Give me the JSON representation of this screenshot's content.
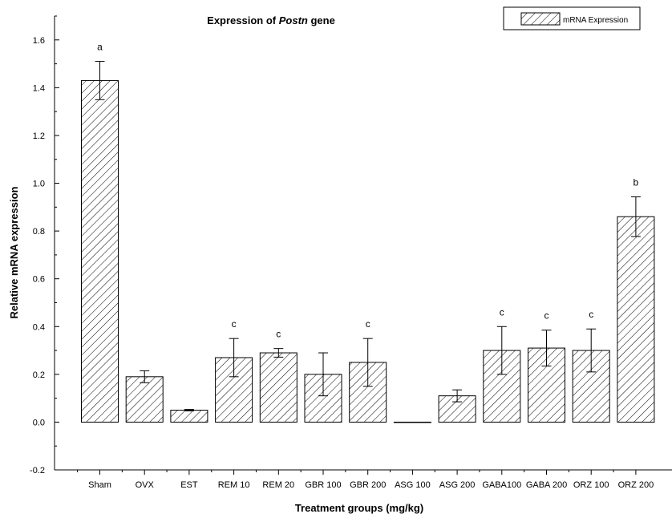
{
  "chart_data": {
    "type": "bar",
    "title_prefix": "Expression of ",
    "title_italic": "Postn",
    "title_suffix": " gene",
    "xlabel": "Treatment groups  (mg/kg)",
    "ylabel": "Relative mRNA expression",
    "ylim": [
      -0.2,
      1.7
    ],
    "yticks": [
      "-0.2",
      "0.0",
      "0.2",
      "0.4",
      "0.6",
      "0.8",
      "1.0",
      "1.2",
      "1.4",
      "1.6"
    ],
    "categories": [
      "Sham",
      "OVX",
      "EST",
      "REM 10",
      "REM 20",
      "GBR 100",
      "GBR 200",
      "ASG 100",
      "ASG 200",
      "GABA100",
      "GABA 200",
      "ORZ 100",
      "ORZ 200"
    ],
    "series": [
      {
        "name": "mRNA Expression",
        "values": [
          1.43,
          0.19,
          0.05,
          0.27,
          0.29,
          0.2,
          0.25,
          0.0,
          0.11,
          0.3,
          0.31,
          0.3,
          0.86
        ],
        "errors": [
          0.08,
          0.025,
          0.003,
          0.08,
          0.018,
          0.09,
          0.1,
          0.0,
          0.025,
          0.1,
          0.075,
          0.09,
          0.083
        ]
      }
    ],
    "significance": [
      "a",
      "",
      "",
      "c",
      "c",
      "",
      "c",
      "",
      "",
      "c",
      "c",
      "c",
      "b"
    ],
    "legend_position": "top-right",
    "grid": false,
    "hatch": "diagonal"
  }
}
